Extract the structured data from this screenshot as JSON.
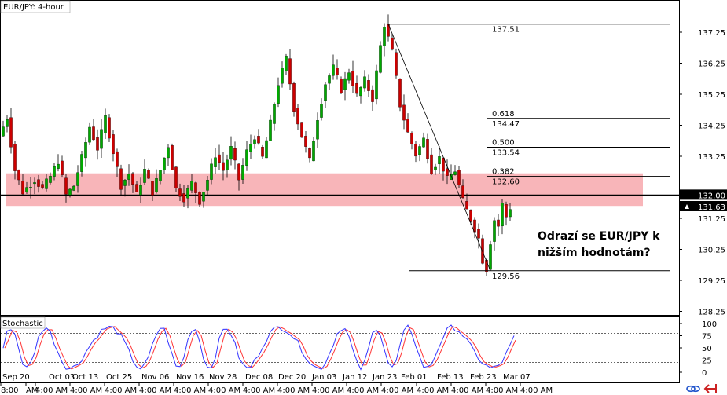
{
  "chart_title": "EUR/JPY: 4-hour",
  "indicator_title": "Stochastic",
  "annotation": {
    "line1": "Odrazí se EUR/JPY k",
    "line2": "nižším hodnotám?"
  },
  "price_axis": {
    "labels": [
      "137.25",
      "136.25",
      "135.25",
      "134.25",
      "133.25",
      "131.25",
      "130.25",
      "129.25",
      "128.25"
    ],
    "range": [
      128.25,
      138.0
    ]
  },
  "stoch_axis": {
    "labels": [
      "100",
      "75",
      "50",
      "25",
      "0"
    ],
    "levels": [
      80,
      20
    ]
  },
  "current_price": {
    "label": "132.00",
    "value": 132.0,
    "color": "#000000"
  },
  "bid_price": {
    "label": "131.63",
    "value": 131.63,
    "color": "#000000"
  },
  "fibonacci": [
    {
      "ratio": "",
      "price": "137.51",
      "value": 137.51
    },
    {
      "ratio": "0.618",
      "price": "134.47",
      "value": 134.47
    },
    {
      "ratio": "0.500",
      "price": "133.54",
      "value": 133.54
    },
    {
      "ratio": "0.382",
      "price": "132.60",
      "value": 132.6
    },
    {
      "ratio": "",
      "price": "129.56",
      "value": 129.56
    }
  ],
  "zone": {
    "from": 131.65,
    "to": 132.7,
    "color": "#f7a8ad"
  },
  "time_axis": {
    "labels": [
      "8:00",
      "AM",
      "4:00 AM",
      "4:00 AM",
      "4:00 AM",
      "4:00 AM",
      "4:00 AM",
      "4:00 AM",
      "4:00 AM",
      "4:00 AM",
      "4:00 AM",
      "4:00 AM",
      "4:00 AM",
      "4:00 AM",
      "4:00 AM",
      "4:00 AM",
      "4:00 AM"
    ],
    "dates": [
      "Sep 20",
      "Oct 03",
      "Oct 13",
      "Oct 25",
      "Nov 06",
      "Nov 16",
      "Nov 28",
      "Dec 08",
      "Dec 20",
      "Jan 03",
      "Jan 12",
      "Jan 23",
      "Feb 01",
      "Feb 13",
      "Feb 23",
      "Mar 07"
    ]
  },
  "colors": {
    "up": "#00aa00",
    "down": "#cc0000",
    "k_line": "#3333ff",
    "d_line": "#ff3333"
  },
  "chart_data": {
    "type": "candlestick",
    "title": "EUR/JPY: 4-hour",
    "ylim": [
      128.25,
      138.0
    ],
    "path": [
      [
        0,
        133.9
      ],
      [
        2,
        134.5
      ],
      [
        4,
        132.8
      ],
      [
        6,
        132.1
      ],
      [
        9,
        132.5
      ],
      [
        11,
        132.2
      ],
      [
        13,
        132.6
      ],
      [
        15,
        133.1
      ],
      [
        17,
        132.0
      ],
      [
        19,
        132.3
      ],
      [
        21,
        133.2
      ],
      [
        23,
        134.2
      ],
      [
        25,
        133.5
      ],
      [
        27,
        134.5
      ],
      [
        29,
        133.4
      ],
      [
        31,
        132.3
      ],
      [
        33,
        132.7
      ],
      [
        35,
        132.0
      ],
      [
        37,
        132.8
      ],
      [
        39,
        132.1
      ],
      [
        41,
        132.8
      ],
      [
        43,
        133.6
      ],
      [
        45,
        132.2
      ],
      [
        47,
        131.9
      ],
      [
        49,
        132.4
      ],
      [
        51,
        131.8
      ],
      [
        53,
        132.5
      ],
      [
        55,
        133.3
      ],
      [
        57,
        132.8
      ],
      [
        59,
        133.5
      ],
      [
        61,
        132.5
      ],
      [
        63,
        133.4
      ],
      [
        65,
        133.9
      ],
      [
        67,
        133.2
      ],
      [
        69,
        134.3
      ],
      [
        71,
        135.6
      ],
      [
        73,
        136.4
      ],
      [
        75,
        134.8
      ],
      [
        77,
        133.9
      ],
      [
        79,
        133.1
      ],
      [
        81,
        134.5
      ],
      [
        83,
        135.6
      ],
      [
        85,
        136.1
      ],
      [
        87,
        135.4
      ],
      [
        89,
        136.0
      ],
      [
        91,
        135.2
      ],
      [
        93,
        135.7
      ],
      [
        95,
        135.1
      ],
      [
        97,
        136.8
      ],
      [
        98,
        137.5
      ],
      [
        100,
        136.6
      ],
      [
        102,
        134.9
      ],
      [
        104,
        134.0
      ],
      [
        106,
        133.3
      ],
      [
        108,
        133.8
      ],
      [
        110,
        132.8
      ],
      [
        112,
        133.2
      ],
      [
        114,
        132.5
      ],
      [
        116,
        132.8
      ],
      [
        118,
        131.8
      ],
      [
        120,
        131.2
      ],
      [
        122,
        130.6
      ],
      [
        123,
        129.9
      ],
      [
        124,
        129.6
      ],
      [
        125,
        130.5
      ],
      [
        126,
        131.2
      ],
      [
        127,
        131.0
      ],
      [
        128,
        131.7
      ],
      [
        129,
        131.3
      ],
      [
        130,
        131.6
      ]
    ],
    "stochastic": {
      "k_levels": [
        80,
        20
      ],
      "range": [
        0,
        100
      ]
    },
    "fibonacci_levels": [
      {
        "ratio": null,
        "value": 137.51
      },
      {
        "ratio": 0.618,
        "value": 134.47
      },
      {
        "ratio": 0.5,
        "value": 133.54
      },
      {
        "ratio": 0.382,
        "value": 132.6
      },
      {
        "ratio": null,
        "value": 129.56
      }
    ]
  }
}
